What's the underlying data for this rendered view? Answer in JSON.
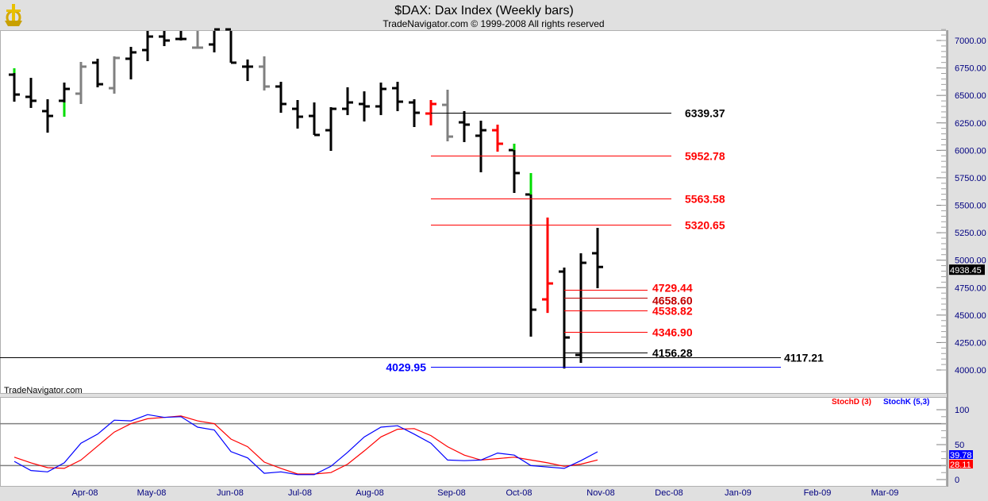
{
  "header": {
    "title": "$DAX:  Dax Index  (Weekly bars)",
    "subtitle": "TradeNavigator.com © 1999-2008 All rights reserved",
    "watermark": "TradeNavigator.com"
  },
  "colors": {
    "up_ext": "#00dd00",
    "bar": "#000000",
    "gray": "#808080",
    "red": "#ff0000",
    "blue": "#0000ff",
    "axis_text": "#000080"
  },
  "chart_data": [
    {
      "type": "ohlc",
      "title": "$DAX: Dax Index (Weekly bars)",
      "ylim": [
        3900,
        7150
      ],
      "y_ticks": [
        "4000.00",
        "4250.00",
        "4500.00",
        "4750.00",
        "5000.00",
        "5250.00",
        "5500.00",
        "5750.00",
        "6000.00",
        "6250.00",
        "6500.00",
        "6750.00",
        "7000.00"
      ],
      "x_labels": [
        "Apr-08",
        "May-08",
        "Jun-08",
        "Jul-08",
        "Aug-08",
        "Sep-08",
        "Oct-08",
        "Nov-08",
        "Dec-08",
        "Jan-09",
        "Feb-09",
        "Mar-09"
      ],
      "last_price": "4938.45",
      "bars": [
        {
          "h": 6747,
          "l": 6443,
          "o": 6689,
          "c": 6508,
          "col": "bar",
          "g": [
            6704,
            6747
          ]
        },
        {
          "h": 6660,
          "l": 6386,
          "o": 6487,
          "c": 6451,
          "col": "bar"
        },
        {
          "h": 6465,
          "l": 6161,
          "o": 6357,
          "c": 6313,
          "col": "bar"
        },
        {
          "h": 6617,
          "l": 6306,
          "o": 6451,
          "c": 6559,
          "col": "bar",
          "g": [
            6306,
            6436
          ]
        },
        {
          "h": 6805,
          "l": 6422,
          "o": 6516,
          "c": 6762,
          "col": "gray"
        },
        {
          "h": 6834,
          "l": 6574,
          "o": 6798,
          "c": 6602,
          "col": "bar"
        },
        {
          "h": 6856,
          "l": 6516,
          "o": 6566,
          "c": 6841,
          "col": "gray"
        },
        {
          "h": 6942,
          "l": 6646,
          "o": 6834,
          "c": 6892,
          "col": "bar"
        },
        {
          "h": 7087,
          "l": 6812,
          "o": 6913,
          "c": 7036,
          "col": "bar"
        },
        {
          "h": 7101,
          "l": 6949,
          "o": 7036,
          "c": 7000,
          "col": "bar"
        },
        {
          "h": 7116,
          "l": 7000,
          "o": 7014,
          "c": 7014,
          "col": "bar"
        },
        {
          "h": 7116,
          "l": 6928,
          "o": 6935,
          "c": 6935,
          "col": "gray"
        },
        {
          "h": 7116,
          "l": 6892,
          "o": 6964,
          "c": 7101,
          "col": "bar"
        },
        {
          "h": 7101,
          "l": 6798,
          "o": 7101,
          "c": 6798,
          "col": "bar"
        },
        {
          "h": 6827,
          "l": 6631,
          "o": 6762,
          "c": 6762,
          "col": "bar"
        },
        {
          "h": 6856,
          "l": 6545,
          "o": 6762,
          "c": 6581,
          "col": "gray"
        },
        {
          "h": 6624,
          "l": 6342,
          "o": 6581,
          "c": 6422,
          "col": "bar"
        },
        {
          "h": 6458,
          "l": 6198,
          "o": 6378,
          "c": 6306,
          "col": "bar"
        },
        {
          "h": 6436,
          "l": 6140,
          "o": 6313,
          "c": 6140,
          "col": "bar"
        },
        {
          "h": 6393,
          "l": 5995,
          "o": 6183,
          "c": 6378,
          "col": "bar"
        },
        {
          "h": 6574,
          "l": 6321,
          "o": 6378,
          "c": 6436,
          "col": "bar"
        },
        {
          "h": 6537,
          "l": 6263,
          "o": 6422,
          "c": 6400,
          "col": "bar"
        },
        {
          "h": 6617,
          "l": 6321,
          "o": 6400,
          "c": 6559,
          "col": "bar"
        },
        {
          "h": 6624,
          "l": 6357,
          "o": 6566,
          "c": 6443,
          "col": "bar"
        },
        {
          "h": 6465,
          "l": 6212,
          "o": 6436,
          "c": 6342,
          "col": "bar"
        },
        {
          "h": 6458,
          "l": 6227,
          "o": 6335,
          "c": 6422,
          "col": "red"
        },
        {
          "h": 6552,
          "l": 6082,
          "o": 6414,
          "c": 6125,
          "col": "gray"
        },
        {
          "h": 6357,
          "l": 6075,
          "o": 6255,
          "c": 6234,
          "col": "bar"
        },
        {
          "h": 6270,
          "l": 5800,
          "o": 6133,
          "c": 6183,
          "col": "bar"
        },
        {
          "h": 6234,
          "l": 5988,
          "o": 6183,
          "c": 6060,
          "col": "red"
        },
        {
          "h": 6060,
          "l": 5612,
          "o": 6002,
          "c": 5793,
          "col": "bar",
          "g": [
            6002,
            6060
          ]
        },
        {
          "h": 5793,
          "l": 4304,
          "o": 5598,
          "c": 4549,
          "col": "bar",
          "g": [
            5598,
            5793
          ]
        },
        {
          "h": 5388,
          "l": 4520,
          "o": 4643,
          "c": 4788,
          "col": "red"
        },
        {
          "h": 4933,
          "l": 4014,
          "o": 4896,
          "c": 4296,
          "col": "bar"
        },
        {
          "h": 5063,
          "l": 4065,
          "o": 4137,
          "c": 4976,
          "col": "bar"
        },
        {
          "h": 5294,
          "l": 4745,
          "o": 5063,
          "c": 4938,
          "col": "bar"
        }
      ],
      "levels": [
        {
          "value": 6339.37,
          "label": "6339.37",
          "color": "#000000",
          "from_bar": 25,
          "to_bar": 40,
          "label_pos": "right"
        },
        {
          "value": 5952.78,
          "label": "5952.78",
          "color": "#ff0000",
          "from_bar": 25,
          "to_bar": 40,
          "label_pos": "right"
        },
        {
          "value": 5563.58,
          "label": "5563.58",
          "color": "#ff0000",
          "from_bar": 25,
          "to_bar": 40,
          "label_pos": "right"
        },
        {
          "value": 5320.65,
          "label": "5320.65",
          "color": "#ff0000",
          "from_bar": 25,
          "to_bar": 40,
          "label_pos": "right"
        },
        {
          "value": 4729.44,
          "label": "4729.44",
          "color": "#ff0000",
          "from_bar": 33,
          "to_bar": 38,
          "label_pos": "right"
        },
        {
          "value": 4658.6,
          "label": "4658.60",
          "color": "#c00000",
          "from_bar": 33,
          "to_bar": 38,
          "label_pos": "right"
        },
        {
          "value": 4538.82,
          "label": "4538.82",
          "color": "#ff0000",
          "from_bar": 33,
          "to_bar": 38,
          "label_pos": "right"
        },
        {
          "value": 4346.9,
          "label": "4346.90",
          "color": "#ff0000",
          "from_bar": 33,
          "to_bar": 38,
          "label_pos": "right"
        },
        {
          "value": 4156.28,
          "label": "4156.28",
          "color": "#000000",
          "from_bar": 33,
          "to_bar": 38,
          "label_pos": "right"
        },
        {
          "value": 4117.21,
          "label": "4117.21",
          "color": "#000000",
          "from_bar": -1,
          "to_bar": 46,
          "label_pos": "right"
        },
        {
          "value": 4029.95,
          "label": "4029.95",
          "color": "#0000ff",
          "from_bar": 25,
          "to_bar": 46,
          "label_pos": "left"
        }
      ]
    },
    {
      "type": "line",
      "title": "Stochastic",
      "ylim": [
        0,
        100
      ],
      "y_ticks": [
        "0",
        "50",
        "100"
      ],
      "reference_lines": [
        20,
        80
      ],
      "series": [
        {
          "name": "StochD (3)",
          "color": "#ff0000",
          "last": "28.11",
          "values": [
            32,
            24,
            17,
            16,
            28,
            48,
            68,
            80,
            87,
            89,
            91,
            84,
            80,
            58,
            47,
            25,
            16,
            8,
            8,
            10,
            22,
            41,
            61,
            72,
            73,
            63,
            47,
            35,
            28,
            30,
            32,
            28,
            24,
            19,
            22,
            28.11
          ]
        },
        {
          "name": "StochK (5,3)",
          "color": "#0000ff",
          "last": "39.78",
          "values": [
            26,
            13,
            11,
            24,
            52,
            65,
            85,
            84,
            93,
            89,
            90,
            75,
            71,
            40,
            31,
            9,
            11,
            7,
            7,
            19,
            39,
            61,
            75,
            77,
            65,
            52,
            28,
            27,
            28,
            38,
            35,
            20,
            18,
            16,
            27,
            39.78
          ]
        }
      ]
    }
  ]
}
